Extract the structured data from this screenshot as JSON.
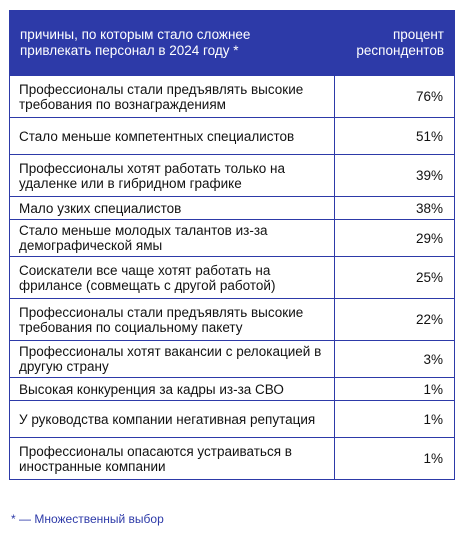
{
  "chart_data": {
    "type": "table",
    "columns": [
      "причины, по которым стало сложнее привлекать персонал в 2024 году *",
      "процент респондентов"
    ],
    "rows": [
      {
        "label": "Профессионалы стали предъявлять высокие требования по вознаграждениям",
        "value": "76%"
      },
      {
        "label": "Стало меньше компетентных специалистов",
        "value": "51%"
      },
      {
        "label": "Профессионалы хотят работать только на удаленке или в гибридном графике",
        "value": "39%"
      },
      {
        "label": "Мало узких специалистов",
        "value": "38%"
      },
      {
        "label": "Стало меньше молодых талантов из-за демографической ямы",
        "value": "29%"
      },
      {
        "label": "Соискатели все чаще хотят работать на фрилансе (совмещать с другой работой)",
        "value": "25%"
      },
      {
        "label": "Профессионалы стали предъявлять высокие требования по социальному пакету",
        "value": "22%"
      },
      {
        "label": "Профессионалы хотят вакансии с релокацией в другую страну",
        "value": "3%"
      },
      {
        "label": "Высокая конкуренция за кадры из-за СВО",
        "value": "1%"
      },
      {
        "label": "У руководства компании негативная репутация",
        "value": "1%"
      },
      {
        "label": "Профессионалы опасаются устраиваться в иностранные компании",
        "value": "1%"
      }
    ],
    "footnote": "* — Множественный выбор"
  },
  "colors": {
    "header_bg": "#2d3aa8",
    "header_text": "#ffffff",
    "border": "#2d3aa8",
    "footnote": "#2d3aa8"
  }
}
